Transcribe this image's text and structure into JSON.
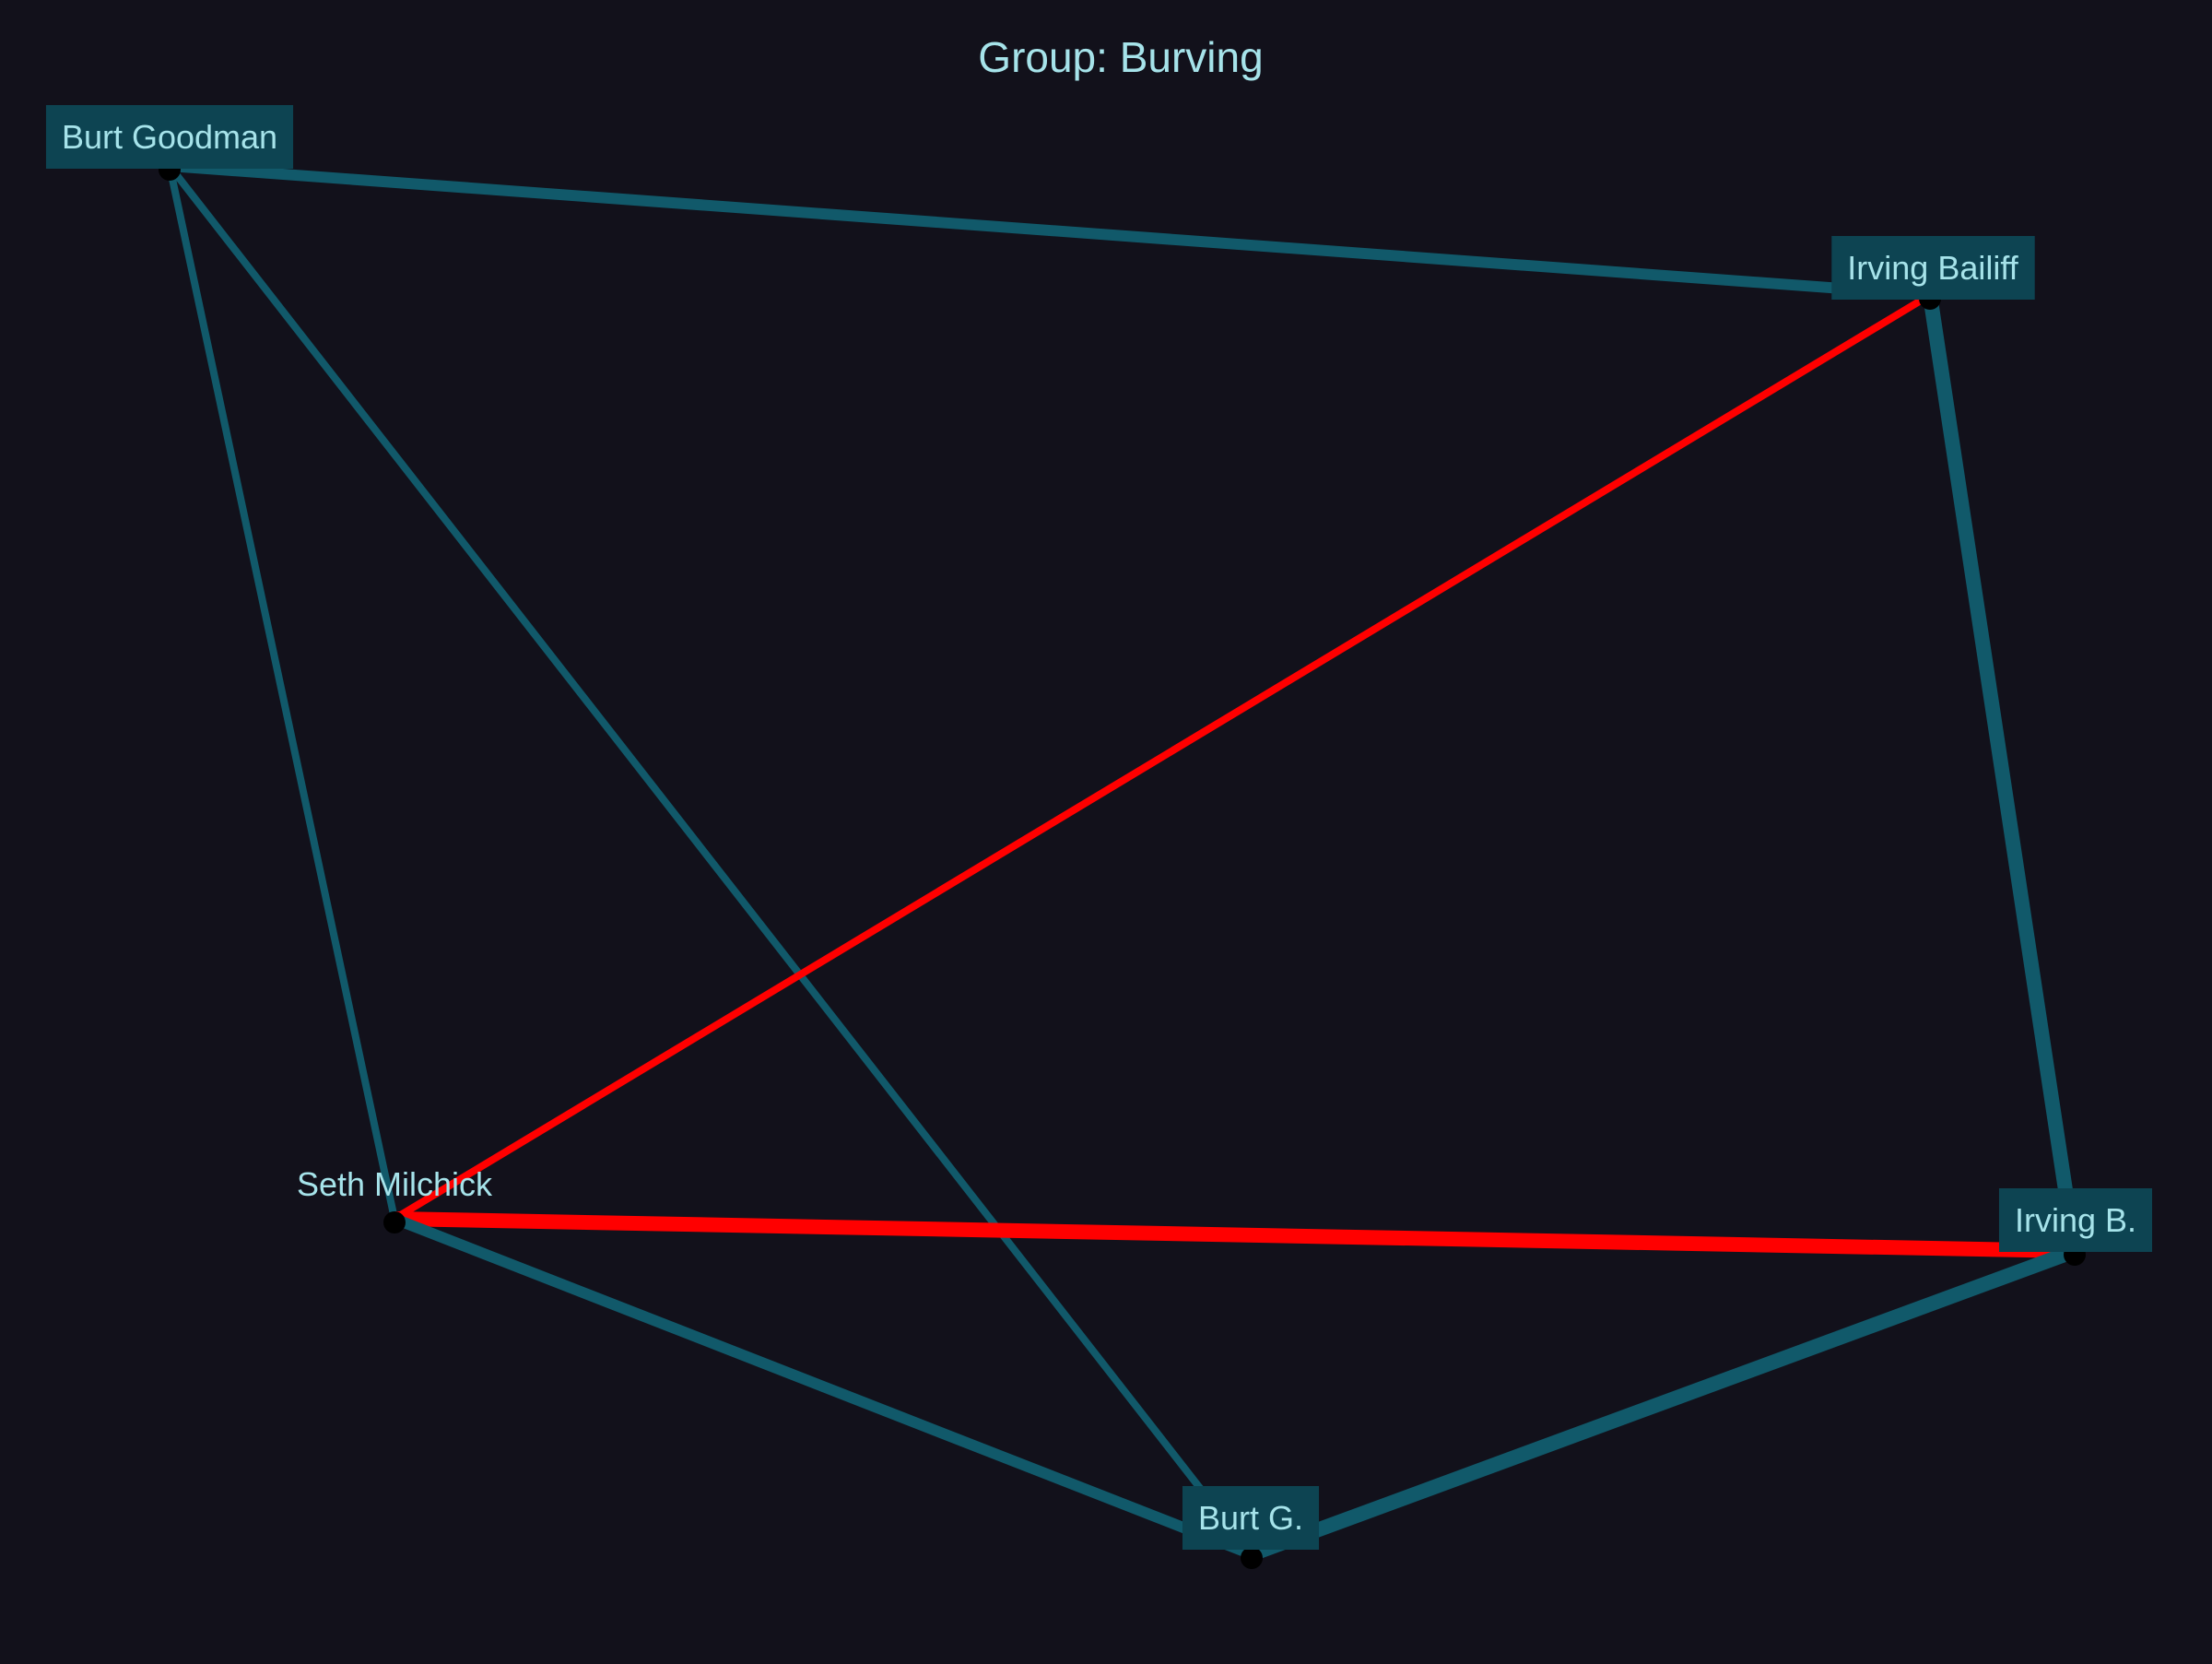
{
  "title": "Group: Burving",
  "colors": {
    "background": "#12111b",
    "edge_default": "#11596a",
    "edge_highlight": "#ff0000",
    "label_box": "#0d4452",
    "label_text": "#a6e3ea",
    "title_text": "#a6e3ea",
    "node_dot": "#000000"
  },
  "nodes": [
    {
      "id": "burt-goodman",
      "label": "Burt Goodman",
      "boxed": true
    },
    {
      "id": "irving-bailiff",
      "label": "Irving Bailiff",
      "boxed": true
    },
    {
      "id": "seth-milchick",
      "label": "Seth Milchick",
      "boxed": false
    },
    {
      "id": "irving-b",
      "label": "Irving B.",
      "boxed": true
    },
    {
      "id": "burt-g",
      "label": "Burt G.",
      "boxed": true
    }
  ],
  "edges": [
    {
      "source": "burt-goodman",
      "target": "irving-bailiff",
      "highlight": false,
      "weight": 3
    },
    {
      "source": "burt-goodman",
      "target": "seth-milchick",
      "highlight": false,
      "weight": 2
    },
    {
      "source": "burt-goodman",
      "target": "burt-g",
      "highlight": false,
      "weight": 2
    },
    {
      "source": "irving-bailiff",
      "target": "irving-b",
      "highlight": false,
      "weight": 4
    },
    {
      "source": "irving-bailiff",
      "target": "seth-milchick",
      "highlight": true,
      "weight": 2
    },
    {
      "source": "seth-milchick",
      "target": "irving-b",
      "highlight": true,
      "weight": 4
    },
    {
      "source": "seth-milchick",
      "target": "burt-g",
      "highlight": false,
      "weight": 3
    },
    {
      "source": "irving-b",
      "target": "burt-g",
      "highlight": false,
      "weight": 4
    }
  ]
}
